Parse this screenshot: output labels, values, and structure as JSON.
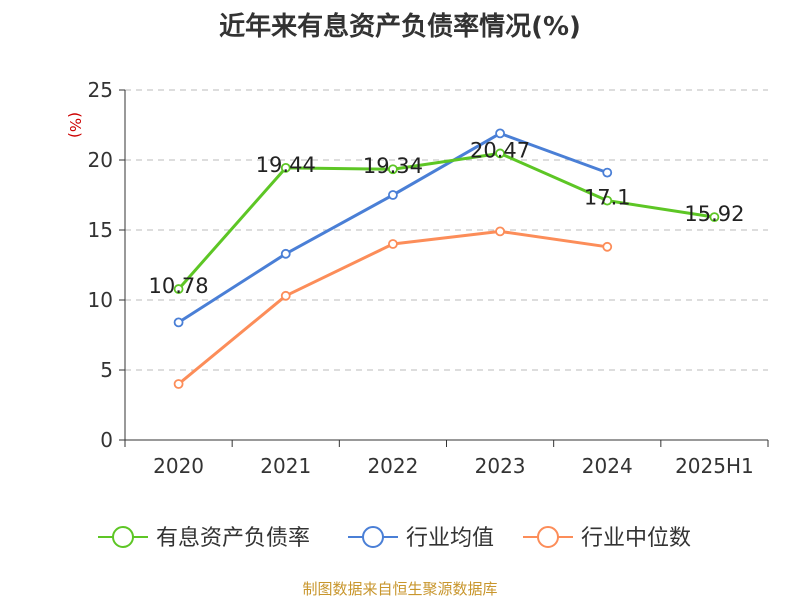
{
  "chart_data": {
    "type": "line",
    "title": "近年来有息资产负债率情况(%)",
    "ylabel": "(%)",
    "categories": [
      "2020",
      "2021",
      "2022",
      "2023",
      "2024",
      "2025H1"
    ],
    "ylim": [
      0,
      25
    ],
    "yticks": [
      0,
      5,
      10,
      15,
      20,
      25
    ],
    "grid": true,
    "legend_position": "bottom",
    "series": [
      {
        "name": "有息资产负债率",
        "color": "#5dc625",
        "values": [
          10.78,
          19.44,
          19.34,
          20.47,
          17.1,
          15.92
        ],
        "labels": [
          "10.78",
          "19.44",
          "19.34",
          "20.47",
          "17.1",
          "15.92"
        ]
      },
      {
        "name": "行业均值",
        "color": "#4a7fd6",
        "values": [
          8.4,
          13.3,
          17.5,
          21.9,
          19.1,
          null
        ]
      },
      {
        "name": "行业中位数",
        "color": "#fc8d59",
        "values": [
          4.0,
          10.3,
          14.0,
          14.9,
          13.8,
          null
        ]
      }
    ]
  },
  "source": "制图数据来自恒生聚源数据库",
  "colors": {
    "source": "#c8962d",
    "ylabel": "#cc0000",
    "axis": "#333333",
    "grid": "#bbbbbb"
  }
}
